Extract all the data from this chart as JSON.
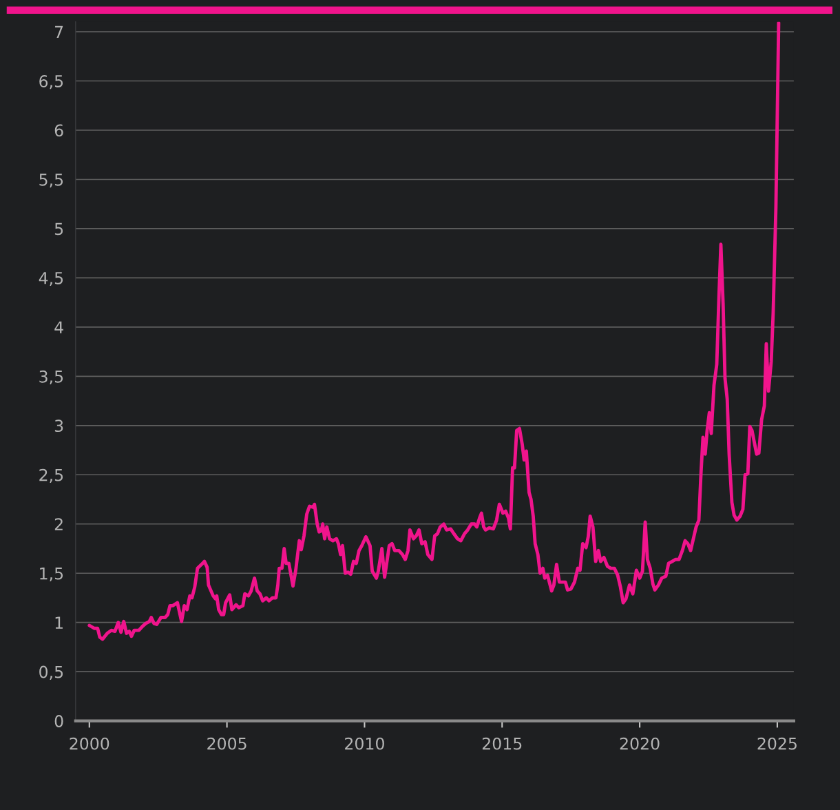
{
  "chart_data": {
    "type": "line",
    "x": [
      2000,
      2000.18,
      2000.3,
      2000.38,
      2000.48,
      2000.65,
      2000.8,
      2000.93,
      2001.05,
      2001.15,
      2001.25,
      2001.35,
      2001.45,
      2001.53,
      2001.63,
      2001.8,
      2001.93,
      2002.05,
      2002.18,
      2002.25,
      2002.35,
      2002.45,
      2002.6,
      2002.75,
      2002.85,
      2002.93,
      2003.03,
      2003.2,
      2003.35,
      2003.45,
      2003.55,
      2003.65,
      2003.73,
      2003.83,
      2003.93,
      2004.08,
      2004.18,
      2004.28,
      2004.33,
      2004.5,
      2004.58,
      2004.63,
      2004.7,
      2004.8,
      2004.88,
      2004.95,
      2005.1,
      2005.18,
      2005.33,
      2005.43,
      2005.58,
      2005.65,
      2005.78,
      2005.88,
      2006,
      2006.1,
      2006.2,
      2006.3,
      2006.43,
      2006.53,
      2006.65,
      2006.78,
      2006.85,
      2006.9,
      2007,
      2007.08,
      2007.15,
      2007.25,
      2007.4,
      2007.5,
      2007.63,
      2007.7,
      2007.8,
      2007.9,
      2008,
      2008.13,
      2008.18,
      2008.28,
      2008.35,
      2008.43,
      2008.48,
      2008.55,
      2008.63,
      2008.73,
      2008.85,
      2008.98,
      2009.05,
      2009.13,
      2009.2,
      2009.3,
      2009.4,
      2009.5,
      2009.6,
      2009.7,
      2009.8,
      2009.9,
      2010.05,
      2010.2,
      2010.28,
      2010.43,
      2010.5,
      2010.63,
      2010.73,
      2010.9,
      2011,
      2011.1,
      2011.25,
      2011.38,
      2011.48,
      2011.58,
      2011.65,
      2011.78,
      2011.88,
      2011.98,
      2012.08,
      2012.2,
      2012.3,
      2012.45,
      2012.55,
      2012.65,
      2012.75,
      2012.88,
      2012.98,
      2013.13,
      2013.25,
      2013.38,
      2013.5,
      2013.63,
      2013.75,
      2013.88,
      2014,
      2014.08,
      2014.18,
      2014.25,
      2014.33,
      2014.4,
      2014.53,
      2014.68,
      2014.8,
      2014.9,
      2015.03,
      2015.13,
      2015.23,
      2015.3,
      2015.38,
      2015.45,
      2015.53,
      2015.63,
      2015.73,
      2015.8,
      2015.88,
      2015.98,
      2016.05,
      2016.13,
      2016.2,
      2016.3,
      2016.38,
      2016.48,
      2016.55,
      2016.65,
      2016.8,
      2016.88,
      2016.98,
      2017.08,
      2017.18,
      2017.3,
      2017.38,
      2017.5,
      2017.63,
      2017.75,
      2017.83,
      2017.93,
      2018.05,
      2018.13,
      2018.2,
      2018.3,
      2018.4,
      2018.5,
      2018.58,
      2018.7,
      2018.83,
      2018.95,
      2019.08,
      2019.2,
      2019.3,
      2019.4,
      2019.5,
      2019.63,
      2019.75,
      2019.88,
      2020,
      2020.1,
      2020.2,
      2020.28,
      2020.38,
      2020.48,
      2020.55,
      2020.68,
      2020.8,
      2020.95,
      2021.05,
      2021.18,
      2021.3,
      2021.43,
      2021.55,
      2021.65,
      2021.75,
      2021.85,
      2021.95,
      2022.05,
      2022.15,
      2022.23,
      2022.3,
      2022.38,
      2022.45,
      2022.53,
      2022.6,
      2022.7,
      2022.8,
      2022.88,
      2022.95,
      2023.03,
      2023.1,
      2023.18,
      2023.25,
      2023.35,
      2023.43,
      2023.53,
      2023.65,
      2023.75,
      2023.83,
      2023.93,
      2024,
      2024.08,
      2024.15,
      2024.25,
      2024.33,
      2024.43,
      2024.53,
      2024.6,
      2024.68,
      2024.78,
      2024.85,
      2024.95,
      2025.05
    ],
    "series": [
      {
        "color": "#f0148c",
        "values": [
          0.97,
          0.94,
          0.94,
          0.85,
          0.83,
          0.89,
          0.92,
          0.91,
          1.0,
          0.9,
          1.01,
          0.89,
          0.91,
          0.86,
          0.92,
          0.92,
          0.96,
          0.99,
          1.01,
          1.05,
          0.99,
          0.98,
          1.05,
          1.05,
          1.08,
          1.17,
          1.17,
          1.2,
          1.01,
          1.17,
          1.13,
          1.27,
          1.25,
          1.36,
          1.55,
          1.59,
          1.62,
          1.56,
          1.38,
          1.27,
          1.24,
          1.27,
          1.13,
          1.08,
          1.08,
          1.2,
          1.28,
          1.13,
          1.18,
          1.15,
          1.17,
          1.29,
          1.27,
          1.32,
          1.45,
          1.32,
          1.29,
          1.22,
          1.25,
          1.22,
          1.25,
          1.25,
          1.38,
          1.55,
          1.55,
          1.75,
          1.6,
          1.6,
          1.37,
          1.53,
          1.83,
          1.74,
          1.88,
          2.1,
          2.18,
          2.17,
          2.2,
          2.0,
          1.92,
          1.93,
          2.0,
          1.85,
          1.97,
          1.85,
          1.83,
          1.85,
          1.8,
          1.69,
          1.78,
          1.5,
          1.51,
          1.49,
          1.62,
          1.6,
          1.73,
          1.78,
          1.87,
          1.78,
          1.52,
          1.45,
          1.52,
          1.75,
          1.46,
          1.78,
          1.8,
          1.73,
          1.73,
          1.69,
          1.64,
          1.73,
          1.94,
          1.85,
          1.88,
          1.94,
          1.8,
          1.82,
          1.69,
          1.64,
          1.88,
          1.9,
          1.97,
          2.0,
          1.94,
          1.95,
          1.9,
          1.85,
          1.83,
          1.9,
          1.94,
          2.0,
          2.0,
          1.97,
          2.06,
          2.11,
          1.97,
          1.94,
          1.96,
          1.95,
          2.04,
          2.2,
          2.11,
          2.13,
          2.06,
          1.95,
          2.57,
          2.57,
          2.95,
          2.97,
          2.81,
          2.65,
          2.74,
          2.32,
          2.25,
          2.08,
          1.8,
          1.69,
          1.5,
          1.55,
          1.45,
          1.48,
          1.32,
          1.38,
          1.59,
          1.41,
          1.41,
          1.41,
          1.33,
          1.34,
          1.41,
          1.55,
          1.53,
          1.8,
          1.76,
          1.87,
          2.08,
          1.97,
          1.62,
          1.73,
          1.62,
          1.66,
          1.57,
          1.55,
          1.55,
          1.48,
          1.36,
          1.2,
          1.24,
          1.38,
          1.29,
          1.53,
          1.45,
          1.52,
          2.02,
          1.64,
          1.55,
          1.39,
          1.33,
          1.38,
          1.45,
          1.47,
          1.6,
          1.62,
          1.64,
          1.64,
          1.73,
          1.83,
          1.8,
          1.73,
          1.85,
          1.97,
          2.04,
          2.53,
          2.88,
          2.71,
          2.95,
          3.13,
          2.92,
          3.41,
          3.62,
          4.31,
          4.84,
          4.24,
          3.48,
          3.27,
          2.71,
          2.22,
          2.09,
          2.04,
          2.08,
          2.15,
          2.5,
          2.51,
          2.99,
          2.95,
          2.85,
          2.71,
          2.72,
          3.06,
          3.2,
          3.83,
          3.35,
          3.65,
          4.14,
          5.22,
          7.09
        ]
      }
    ],
    "xlim": [
      1999.5,
      2025.6
    ],
    "xticks": [
      2000,
      2005,
      2010,
      2015,
      2020,
      2025
    ],
    "ylim": [
      0,
      7.1
    ],
    "yticks": [
      0,
      {
        "value": 0.5,
        "label": "0,5"
      },
      1,
      {
        "value": 1.5,
        "label": "1,5"
      },
      2,
      {
        "value": 2.5,
        "label": "2,5"
      },
      3,
      {
        "value": 3.5,
        "label": "3,5"
      },
      4,
      {
        "value": 4.5,
        "label": "4,5"
      },
      5,
      {
        "value": 5.5,
        "label": "5,5"
      },
      6,
      {
        "value": 6.5,
        "label": "6,5"
      },
      7
    ],
    "grid": "y",
    "marker": "none",
    "line_style": "solid"
  }
}
